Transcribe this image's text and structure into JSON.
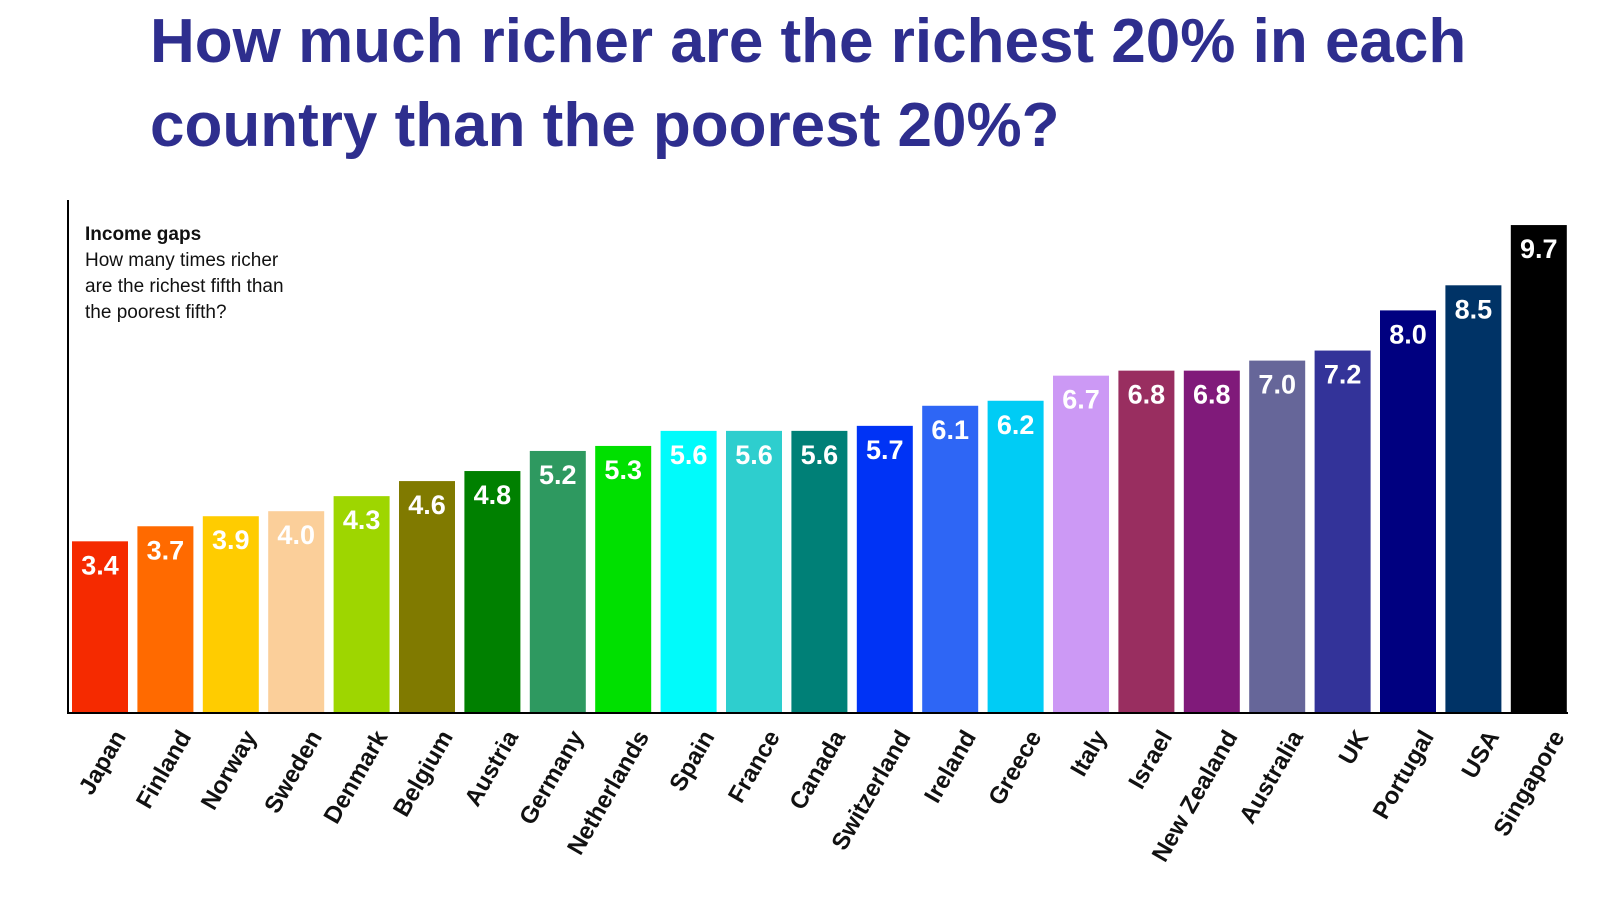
{
  "title": "How much richer are the richest 20% in each country than the poorest 20%?",
  "chart_data": {
    "type": "bar",
    "title": "Income gaps",
    "subtitle": [
      "How many times richer",
      "are the richest fifth than",
      "the poorest fifth?"
    ],
    "xlabel": "",
    "ylabel": "",
    "ylim": [
      0,
      10
    ],
    "grid": false,
    "legend": "none",
    "categories": [
      "Japan",
      "Finland",
      "Norway",
      "Sweden",
      "Denmark",
      "Belgium",
      "Austria",
      "Germany",
      "Netherlands",
      "Spain",
      "France",
      "Canada",
      "Switzerland",
      "Ireland",
      "Greece",
      "Italy",
      "Israel",
      "New Zealand",
      "Australia",
      "UK",
      "Portugal",
      "USA",
      "Singapore"
    ],
    "values": [
      3.4,
      3.7,
      3.9,
      4.0,
      4.3,
      4.6,
      4.8,
      5.2,
      5.3,
      5.6,
      5.6,
      5.6,
      5.7,
      6.1,
      6.2,
      6.7,
      6.8,
      6.8,
      7.0,
      7.2,
      8.0,
      8.5,
      9.7
    ],
    "value_labels": [
      "3.4",
      "3.7",
      "3.9",
      "4.0",
      "4.3",
      "4.6",
      "4.8",
      "5.2",
      "5.3",
      "5.6",
      "5.6",
      "5.6",
      "5.7",
      "6.1",
      "6.2",
      "6.7",
      "6.8",
      "6.8",
      "7.0",
      "7.2",
      "8.0",
      "8.5",
      "9.7"
    ],
    "colors": [
      "#f52a00",
      "#ff6a00",
      "#ffcc00",
      "#fbcf9a",
      "#9ed600",
      "#807a00",
      "#008000",
      "#2e9960",
      "#00e000",
      "#00fbfb",
      "#2ecece",
      "#008077",
      "#0033f5",
      "#2e66f5",
      "#00ccf5",
      "#cc99f5",
      "#992e60",
      "#801a7a",
      "#666699",
      "#333399",
      "#000080",
      "#003366",
      "#000000"
    ]
  }
}
